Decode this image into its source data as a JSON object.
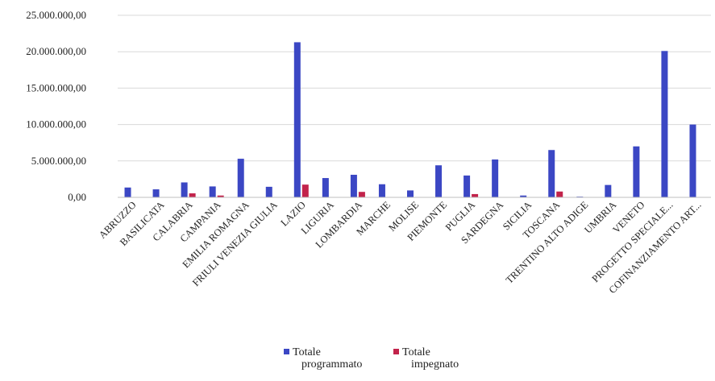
{
  "colors": {
    "programmato": "#3b47c4",
    "impegnato": "#c2234b",
    "grid": "#d9d9d9",
    "axis": "#bfbfbf"
  },
  "chart_data": {
    "type": "bar",
    "title": "",
    "xlabel": "",
    "ylabel": "",
    "ylim": [
      0,
      25000000
    ],
    "y_ticks": [
      "0,00",
      "5.000.000,00",
      "10.000.000,00",
      "15.000.000,00",
      "20.000.000,00",
      "25.000.000,00"
    ],
    "categories": [
      "ABRUZZO",
      "BASILICATA",
      "CALABRIA",
      "CAMPANIA",
      "EMILIA ROMAGNA",
      "FRIULI VENEZIA GIULIA",
      "LAZIO",
      "LIGURIA",
      "LOMBARDIA",
      "MARCHE",
      "MOLISE",
      "PIEMONTE",
      "PUGLIA",
      "SARDEGNA",
      "SICILIA",
      "TOSCANA",
      "TRENTINO ALTO ADIGE",
      "UMBRIA",
      "VENETO",
      "PROGETTO SPECIALE...",
      "COFINANZIAMENTO ART..."
    ],
    "series": [
      {
        "name": "Totale programmato",
        "color": "#3b47c4",
        "values": [
          1350000,
          1100000,
          2050000,
          1500000,
          5300000,
          1450000,
          21300000,
          2650000,
          3100000,
          1800000,
          950000,
          4400000,
          3000000,
          5200000,
          250000,
          6500000,
          100000,
          1700000,
          7000000,
          20100000,
          10000000
        ]
      },
      {
        "name": "Totale impegnato",
        "color": "#c2234b",
        "values": [
          0,
          0,
          550000,
          250000,
          0,
          0,
          1750000,
          0,
          750000,
          0,
          0,
          0,
          450000,
          0,
          0,
          800000,
          0,
          0,
          0,
          0,
          0
        ]
      }
    ],
    "legend": [
      {
        "lines": [
          "Totale",
          "programmato"
        ],
        "color": "#3b47c4"
      },
      {
        "lines": [
          "Totale",
          "impegnato"
        ],
        "color": "#c2234b"
      }
    ],
    "legend_position": "bottom",
    "grid": true
  }
}
